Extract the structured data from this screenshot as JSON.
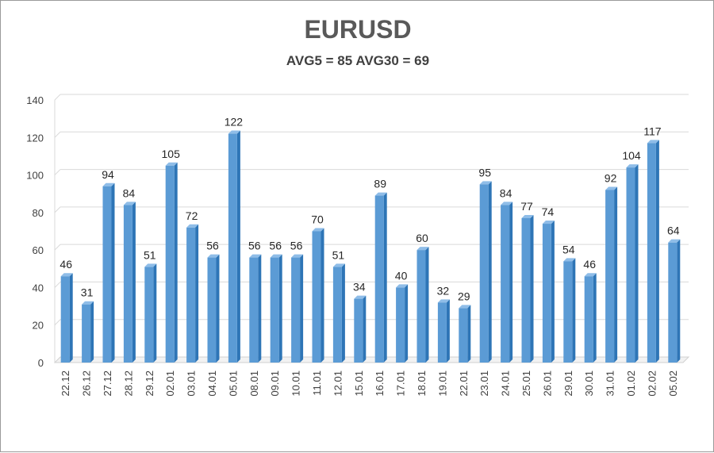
{
  "chart_data": {
    "type": "bar",
    "title": "EURUSD",
    "subtitle": "AVG5 = 85 AVG30 = 69",
    "xlabel": "",
    "ylabel": "",
    "ylim": [
      0,
      140
    ],
    "yticks": [
      0,
      20,
      40,
      60,
      80,
      100,
      120,
      140
    ],
    "grid": true,
    "legend": "none",
    "bar_style": "3d",
    "colors": {
      "bar": "#5b9bd5",
      "bar_dark": "#2e75b6",
      "bar_light": "#8fbde8",
      "grid": "#d9d9d9"
    },
    "categories": [
      "22.12",
      "26.12",
      "27.12",
      "28.12",
      "29.12",
      "02.01",
      "03.01",
      "04.01",
      "05.01",
      "08.01",
      "09.01",
      "10.01",
      "11.01",
      "12.01",
      "15.01",
      "16.01",
      "17.01",
      "18.01",
      "19.01",
      "22.01",
      "23.01",
      "24.01",
      "25.01",
      "26.01",
      "29.01",
      "30.01",
      "31.01",
      "01.02",
      "02.02",
      "05.02"
    ],
    "values": [
      46,
      31,
      94,
      84,
      51,
      105,
      72,
      56,
      122,
      56,
      56,
      56,
      70,
      51,
      34,
      89,
      40,
      60,
      32,
      29,
      95,
      84,
      77,
      74,
      54,
      46,
      92,
      104,
      117,
      64
    ]
  }
}
